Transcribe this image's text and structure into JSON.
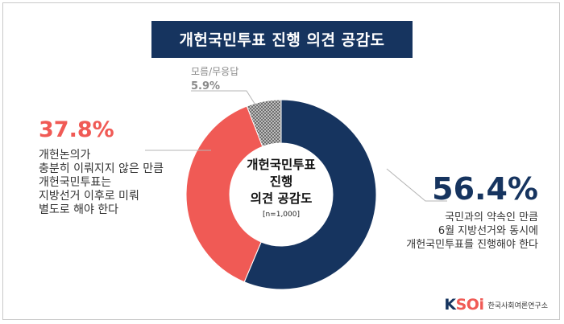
{
  "title": "개헌국민투표 진행 의견 공감도",
  "center": {
    "title": "개헌국민투표\n진행\n의견 공감도",
    "n": "[n=1,000]"
  },
  "chart_data": {
    "type": "pie",
    "donut": true,
    "title": "개헌국민투표 진행 의견 공감도",
    "slices": [
      {
        "label": "국민과의 약속인 만큼\n6월 지방선거와 동시에\n개헌국민투표를 진행해야 한다",
        "value": 56.4,
        "display": "56.4%",
        "color": "#16345f"
      },
      {
        "label": "개헌논의가\n충분히 이뤄지지 않은 만큼\n개헌국민투표는\n지방선거 이후로 미뤄\n별도로 해야 한다",
        "value": 37.8,
        "display": "37.8%",
        "color": "#f05a55"
      },
      {
        "label": "모름/무응답",
        "value": 5.9,
        "display": "5.9%",
        "color": "#9a9a9a",
        "pattern": "checker"
      }
    ]
  },
  "logo": {
    "mark_k": "K",
    "mark_soi": "SOi",
    "text": "한국사회여론연구소"
  },
  "colors": {
    "navy": "#16345f",
    "coral": "#f05a55",
    "gray": "#9a9a9a"
  }
}
